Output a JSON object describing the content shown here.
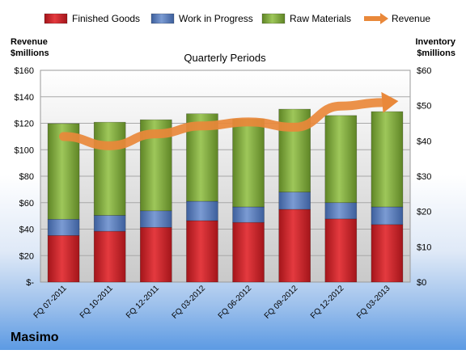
{
  "chart_data": {
    "type": "bar",
    "title": "Quarterly Periods",
    "company": "Masimo",
    "left_axis": {
      "label_line1": "Revenue",
      "label_line2": "$millions",
      "range": [
        0,
        160
      ],
      "ticks": [
        0,
        20,
        40,
        60,
        80,
        100,
        120,
        140,
        160
      ],
      "tick_labels": [
        "$-",
        "$20",
        "$40",
        "$60",
        "$80",
        "$100",
        "$120",
        "$140",
        "$160"
      ]
    },
    "right_axis": {
      "label_line1": "Inventory",
      "label_line2": "$millions",
      "range": [
        0,
        60
      ],
      "ticks": [
        0,
        10,
        20,
        30,
        40,
        50,
        60
      ],
      "tick_labels": [
        "$0",
        "$10",
        "$20",
        "$30",
        "$40",
        "$50",
        "$60"
      ]
    },
    "categories": [
      "FQ 07-2011",
      "FQ 10-2011",
      "FQ 12-2011",
      "FQ 03-2012",
      "FQ 06-2012",
      "FQ 09-2012",
      "FQ 12-2012",
      "FQ 03-2013"
    ],
    "series": [
      {
        "name": "Finished Goods",
        "kind": "stacked-bar",
        "axis": "right",
        "color": "#d9262c",
        "values": [
          13.2,
          14.4,
          15.5,
          17.4,
          16.9,
          20.6,
          17.9,
          16.3
        ]
      },
      {
        "name": "Work in Progress",
        "kind": "stacked-bar",
        "axis": "right",
        "color": "#5a7fc0",
        "values": [
          4.6,
          4.5,
          4.7,
          5.5,
          4.4,
          4.9,
          4.6,
          5.0
        ]
      },
      {
        "name": "Raw Materials",
        "kind": "stacked-bar",
        "axis": "right",
        "color": "#8db53c",
        "values": [
          27.1,
          26.4,
          25.8,
          24.8,
          24.9,
          23.5,
          24.7,
          27.0
        ]
      },
      {
        "name": "Revenue",
        "kind": "line",
        "axis": "left",
        "color": "#e9883a",
        "values": [
          110,
          103,
          112,
          118,
          121,
          117,
          133,
          136
        ]
      }
    ],
    "legend_position": "top",
    "grid": true
  }
}
